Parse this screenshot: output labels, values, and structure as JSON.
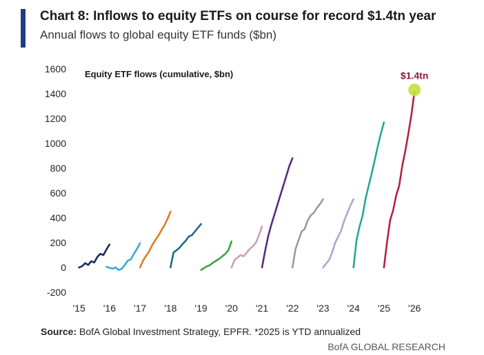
{
  "title": "Chart 8: Inflows to equity ETFs on course for record $1.4tn year",
  "subtitle": "Annual flows to global equity ETF funds ($bn)",
  "source_label": "Source:",
  "source_text": "BofA Global Investment Strategy, EPFR. *2025 is YTD annualized",
  "brand": "BofA GLOBAL RESEARCH",
  "colors": {
    "accent": "#1f3c88",
    "highlight_dot": "#c8e03a",
    "callout_text": "#8b1a3a"
  },
  "chart_data": {
    "type": "line",
    "inner_label": "Equity ETF flows (cumulative, $bn)",
    "callout": "$1.4tn",
    "x_tick_labels": [
      "'15",
      "'16",
      "'17",
      "'18",
      "'19",
      "'20",
      "'21",
      "'22",
      "'23",
      "'24",
      "'25",
      "'26"
    ],
    "x_tick_values": [
      2015,
      2016,
      2017,
      2018,
      2019,
      2020,
      2021,
      2022,
      2023,
      2024,
      2025,
      2026
    ],
    "xlim": [
      2014.85,
      2026.2
    ],
    "ylim": [
      -200,
      1600
    ],
    "y_ticks": [
      -200,
      0,
      200,
      400,
      600,
      800,
      1000,
      1200,
      1400,
      1600
    ],
    "grid": false,
    "series": [
      {
        "year": "2015",
        "color": "#1b2a5e",
        "x": [
          2015.0,
          2015.1,
          2015.2,
          2015.3,
          2015.4,
          2015.5,
          2015.6,
          2015.7,
          2015.8,
          2015.9,
          2016.0
        ],
        "y": [
          0,
          10,
          35,
          20,
          50,
          40,
          85,
          110,
          100,
          145,
          185
        ]
      },
      {
        "year": "2016",
        "color": "#35a8d8",
        "x": [
          2015.9,
          2016.1,
          2016.2,
          2016.3,
          2016.4,
          2016.5,
          2016.6,
          2016.7,
          2016.8,
          2016.9,
          2017.0
        ],
        "y": [
          5,
          -10,
          0,
          -20,
          -10,
          20,
          55,
          65,
          110,
          150,
          195
        ]
      },
      {
        "year": "2017",
        "color": "#e07b22",
        "x": [
          2017.0,
          2017.1,
          2017.2,
          2017.3,
          2017.4,
          2017.5,
          2017.6,
          2017.7,
          2017.8,
          2017.9,
          2018.0
        ],
        "y": [
          0,
          55,
          95,
          130,
          180,
          220,
          255,
          300,
          340,
          390,
          450
        ]
      },
      {
        "year": "2018",
        "color": "#1e6b80",
        "x": [
          2018.0,
          2018.1,
          2018.2,
          2018.3,
          2018.4,
          2018.5,
          2018.6,
          2018.7,
          2018.8,
          2018.9,
          2019.0
        ],
        "y": [
          0,
          120,
          140,
          160,
          190,
          215,
          250,
          260,
          290,
          320,
          350
        ]
      },
      {
        "year": "2019",
        "color": "#3aa33a",
        "x": [
          2019.0,
          2019.1,
          2019.2,
          2019.3,
          2019.4,
          2019.5,
          2019.6,
          2019.7,
          2019.8,
          2019.9,
          2020.0
        ],
        "y": [
          -20,
          -5,
          10,
          20,
          40,
          55,
          70,
          90,
          110,
          140,
          210
        ]
      },
      {
        "year": "2020",
        "color": "#c9a0b4",
        "x": [
          2020.0,
          2020.1,
          2020.2,
          2020.3,
          2020.4,
          2020.5,
          2020.6,
          2020.7,
          2020.8,
          2020.9,
          2021.0
        ],
        "y": [
          0,
          60,
          80,
          100,
          90,
          120,
          150,
          170,
          200,
          260,
          330
        ]
      },
      {
        "year": "2021",
        "color": "#5b2a7e",
        "x": [
          2021.0,
          2021.1,
          2021.2,
          2021.3,
          2021.4,
          2021.5,
          2021.6,
          2021.7,
          2021.8,
          2021.9,
          2022.0
        ],
        "y": [
          0,
          130,
          250,
          340,
          420,
          500,
          580,
          660,
          740,
          820,
          880
        ]
      },
      {
        "year": "2022",
        "color": "#9a9a9a",
        "x": [
          2022.0,
          2022.1,
          2022.2,
          2022.3,
          2022.4,
          2022.5,
          2022.6,
          2022.7,
          2022.8,
          2022.9,
          2023.0
        ],
        "y": [
          0,
          150,
          220,
          290,
          310,
          380,
          420,
          440,
          480,
          510,
          550
        ]
      },
      {
        "year": "2023",
        "color": "#a7a9cc",
        "x": [
          2023.0,
          2023.1,
          2023.2,
          2023.3,
          2023.4,
          2023.5,
          2023.6,
          2023.7,
          2023.8,
          2023.9,
          2024.0
        ],
        "y": [
          0,
          30,
          60,
          120,
          200,
          250,
          300,
          380,
          440,
          500,
          550
        ]
      },
      {
        "year": "2024",
        "color": "#25a892",
        "x": [
          2024.0,
          2024.1,
          2024.2,
          2024.3,
          2024.4,
          2024.5,
          2024.6,
          2024.7,
          2024.8,
          2024.9,
          2025.0
        ],
        "y": [
          0,
          220,
          330,
          420,
          560,
          660,
          760,
          870,
          980,
          1080,
          1170
        ]
      },
      {
        "year": "2025",
        "color": "#b2223f",
        "x": [
          2025.0,
          2025.1,
          2025.2,
          2025.3,
          2025.4,
          2025.5,
          2025.6,
          2025.7,
          2025.8,
          2025.9,
          2026.0
        ],
        "y": [
          0,
          200,
          380,
          460,
          580,
          660,
          820,
          940,
          1080,
          1230,
          1420
        ]
      }
    ]
  }
}
